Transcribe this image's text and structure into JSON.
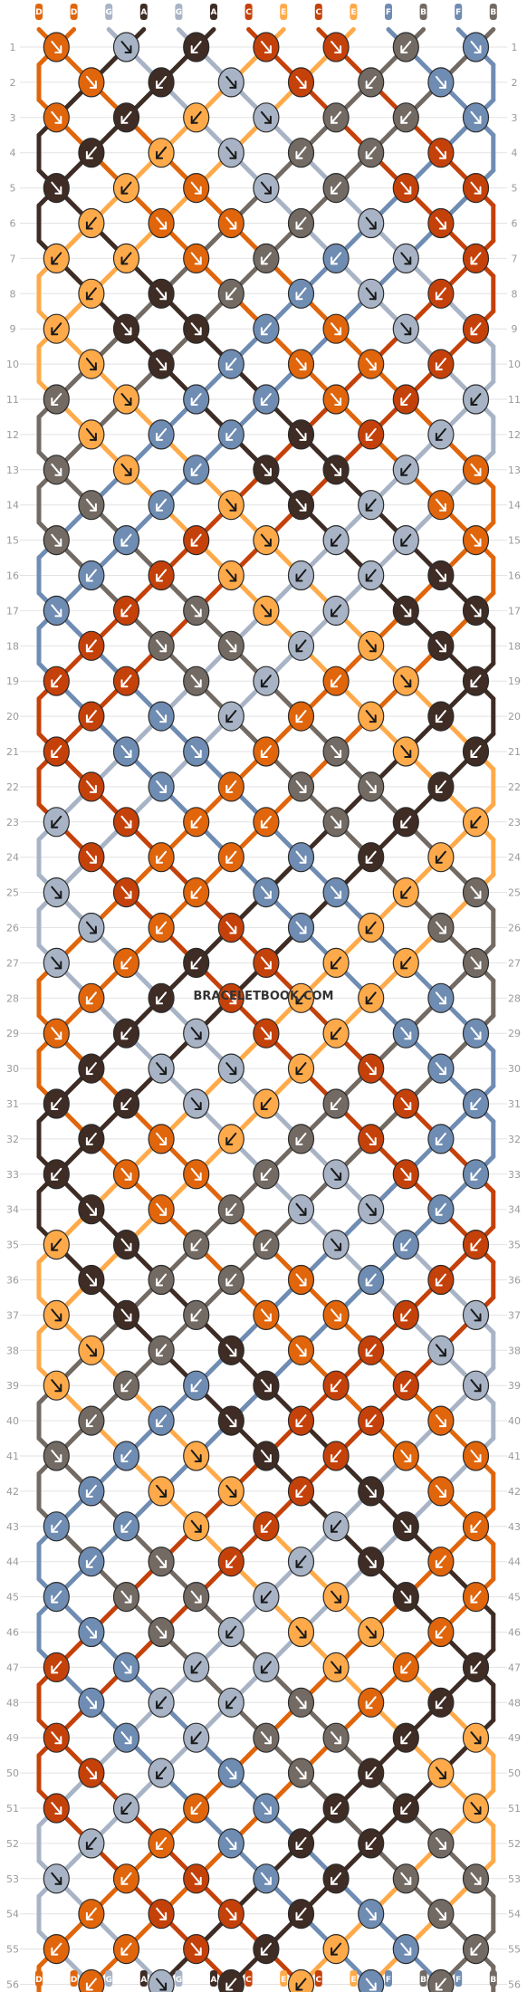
{
  "watermark": "BRACELETBOOK.COM",
  "colors": {
    "A": "#3e2c25",
    "B": "#726a63",
    "C": "#c5410a",
    "D": "#e0650b",
    "E": "#ffaa4a",
    "F": "#6f8cb3",
    "G": "#a8b4c6"
  },
  "strands": [
    "D",
    "D",
    "G",
    "A",
    "G",
    "A",
    "C",
    "E",
    "C",
    "E",
    "F",
    "B",
    "F",
    "B"
  ],
  "row_count": 56
}
